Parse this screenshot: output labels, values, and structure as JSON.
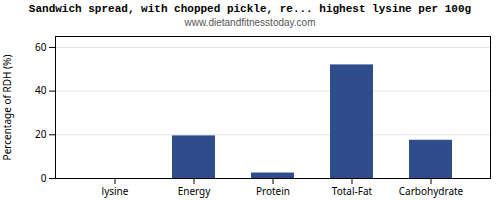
{
  "chart_data": {
    "type": "bar",
    "title": "Sandwich spread, with chopped pickle, re... highest lysine per 100g",
    "subtitle": "www.dietandfitnesstoday.com",
    "categories": [
      "lysine",
      "Energy",
      "Protein",
      "Total-Fat",
      "Carbohydrate"
    ],
    "values": [
      0,
      19.5,
      2.5,
      52,
      17.5
    ],
    "color": "#2e4d8a",
    "ylabel": "Percentage of RDH (%)",
    "ylim": [
      0,
      65
    ],
    "yticks": [
      0,
      20,
      40,
      60
    ],
    "grid": true
  }
}
